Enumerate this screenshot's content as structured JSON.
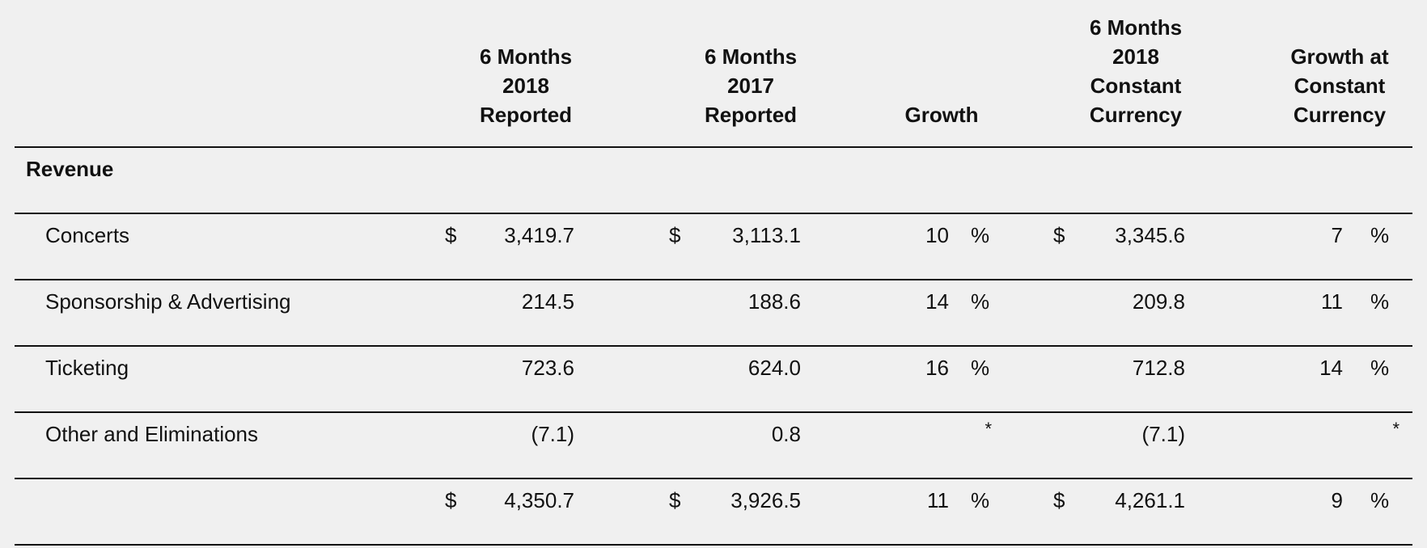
{
  "columns": [
    {
      "lines": [
        "6 Months",
        "2018",
        "Reported"
      ]
    },
    {
      "lines": [
        "6 Months",
        "2017",
        "Reported"
      ]
    },
    {
      "lines": [
        "Growth"
      ]
    },
    {
      "lines": [
        "6 Months",
        "2018",
        "Constant",
        "Currency"
      ]
    },
    {
      "lines": [
        "Growth at",
        "Constant",
        "Currency"
      ]
    }
  ],
  "section_title": "Revenue",
  "rows": [
    {
      "label": "Concerts",
      "c1": "3,419.7",
      "c2": "3,113.1",
      "g": "10",
      "c3": "3,345.6",
      "g2": "7",
      "dollars": true
    },
    {
      "label": "Sponsorship & Advertising",
      "c1": "214.5",
      "c2": "188.6",
      "g": "14",
      "c3": "209.8",
      "g2": "11",
      "dollars": false
    },
    {
      "label": "Ticketing",
      "c1": "723.6",
      "c2": "624.0",
      "g": "16",
      "c3": "712.8",
      "g2": "14",
      "dollars": false
    },
    {
      "label": "Other and Eliminations",
      "c1": "(7.1)",
      "c2": "0.8",
      "g": "*",
      "c3": "(7.1)",
      "g2": "*",
      "dollars": false
    },
    {
      "label": "",
      "c1": "4,350.7",
      "c2": "3,926.5",
      "g": "11",
      "c3": "4,261.1",
      "g2": "9",
      "dollars": true
    }
  ],
  "currency_symbol": "$",
  "percent_symbol": "%"
}
